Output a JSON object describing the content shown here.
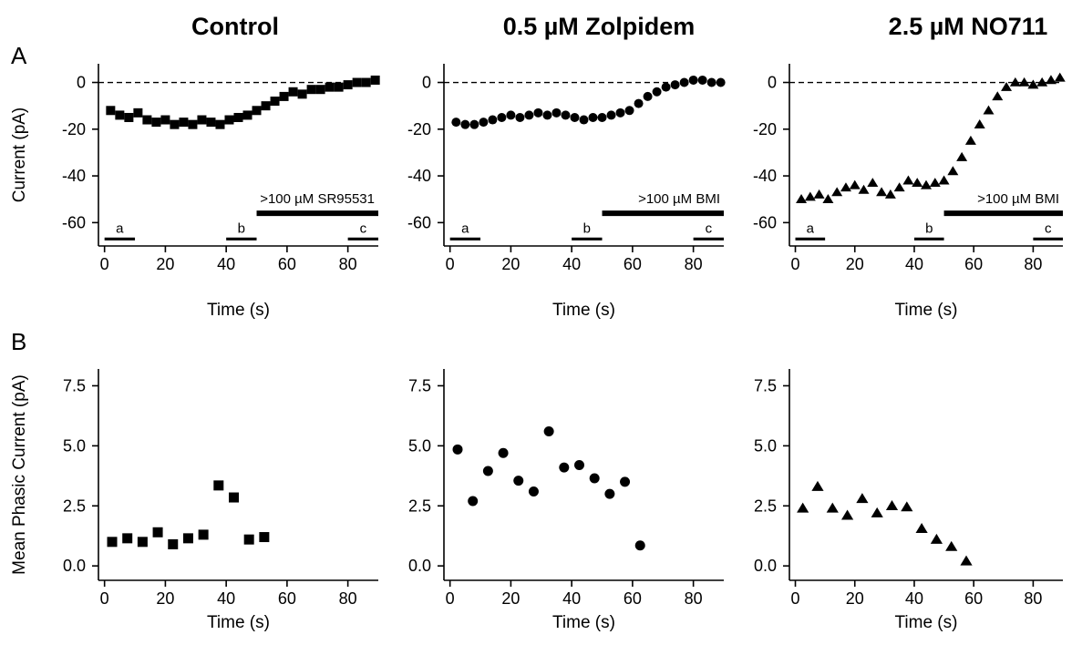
{
  "panels": {
    "A": "A",
    "B": "B"
  },
  "column_titles": [
    "Control",
    "0.5 µM Zolpidem",
    "2.5 µM NO711"
  ],
  "chart_data": [
    {
      "type": "scatter",
      "title": "Control",
      "panel": "A",
      "xlabel": "Time (s)",
      "ylabel": "Current (pA)",
      "xlim": [
        -2,
        90
      ],
      "ylim": [
        -70,
        8
      ],
      "xticks": [
        0,
        20,
        40,
        60,
        80
      ],
      "yticks": [
        0,
        -20,
        -40,
        -60
      ],
      "baseline": 0,
      "marker": "square",
      "series": [
        {
          "x": [
            2,
            5,
            8,
            11,
            14,
            17,
            20,
            23,
            26,
            29,
            32,
            35,
            38,
            41,
            44,
            47,
            50,
            53,
            56,
            59,
            62,
            65,
            68,
            71,
            74,
            77,
            80,
            83,
            86,
            89
          ],
          "y": [
            -12,
            -14,
            -15,
            -13,
            -16,
            -17,
            -16,
            -18,
            -17,
            -18,
            -16,
            -17,
            -18,
            -16,
            -15,
            -14,
            -12,
            -10,
            -8,
            -6,
            -4,
            -5,
            -3,
            -3,
            -2,
            -2,
            -1,
            0,
            0,
            1
          ]
        }
      ],
      "bars": [
        {
          "label": "a",
          "x": [
            0,
            10
          ],
          "level": -67
        },
        {
          "label": "b",
          "x": [
            40,
            50
          ],
          "level": -67
        },
        {
          "label": "c",
          "x": [
            80,
            90
          ],
          "level": -67
        },
        {
          "label": ">100 µM SR95531",
          "x": [
            50,
            90
          ],
          "level": -56
        }
      ]
    },
    {
      "type": "scatter",
      "title": "0.5 µM Zolpidem",
      "panel": "A",
      "xlabel": "Time (s)",
      "ylabel": "",
      "xlim": [
        -2,
        90
      ],
      "ylim": [
        -70,
        8
      ],
      "xticks": [
        0,
        20,
        40,
        60,
        80
      ],
      "yticks": [
        0,
        -20,
        -40,
        -60
      ],
      "baseline": 0,
      "marker": "circle",
      "series": [
        {
          "x": [
            2,
            5,
            8,
            11,
            14,
            17,
            20,
            23,
            26,
            29,
            32,
            35,
            38,
            41,
            44,
            47,
            50,
            53,
            56,
            59,
            62,
            65,
            68,
            71,
            74,
            77,
            80,
            83,
            86,
            89
          ],
          "y": [
            -17,
            -18,
            -18,
            -17,
            -16,
            -15,
            -14,
            -15,
            -14,
            -13,
            -14,
            -13,
            -14,
            -15,
            -16,
            -15,
            -15,
            -14,
            -13,
            -12,
            -9,
            -6,
            -4,
            -2,
            -1,
            0,
            1,
            1,
            0,
            0
          ]
        }
      ],
      "bars": [
        {
          "label": "a",
          "x": [
            0,
            10
          ],
          "level": -67
        },
        {
          "label": "b",
          "x": [
            40,
            50
          ],
          "level": -67
        },
        {
          "label": "c",
          "x": [
            80,
            90
          ],
          "level": -67
        },
        {
          "label": ">100 µM BMI",
          "x": [
            50,
            90
          ],
          "level": -56
        }
      ]
    },
    {
      "type": "scatter",
      "title": "2.5 µM NO711",
      "panel": "A",
      "xlabel": "Time (s)",
      "ylabel": "",
      "xlim": [
        -2,
        90
      ],
      "ylim": [
        -70,
        8
      ],
      "xticks": [
        0,
        20,
        40,
        60,
        80
      ],
      "yticks": [
        0,
        -20,
        -40,
        -60
      ],
      "baseline": 0,
      "marker": "triangle",
      "series": [
        {
          "x": [
            2,
            5,
            8,
            11,
            14,
            17,
            20,
            23,
            26,
            29,
            32,
            35,
            38,
            41,
            44,
            47,
            50,
            53,
            56,
            59,
            62,
            65,
            68,
            71,
            74,
            77,
            80,
            83,
            86,
            89
          ],
          "y": [
            -50,
            -49,
            -48,
            -50,
            -47,
            -45,
            -44,
            -46,
            -43,
            -47,
            -48,
            -45,
            -42,
            -43,
            -44,
            -43,
            -42,
            -38,
            -32,
            -25,
            -18,
            -12,
            -6,
            -2,
            0,
            0,
            -1,
            0,
            1,
            2
          ]
        }
      ],
      "bars": [
        {
          "label": "a",
          "x": [
            0,
            10
          ],
          "level": -67
        },
        {
          "label": "b",
          "x": [
            40,
            50
          ],
          "level": -67
        },
        {
          "label": "c",
          "x": [
            80,
            90
          ],
          "level": -67
        },
        {
          "label": ">100 µM BMI",
          "x": [
            50,
            90
          ],
          "level": -56
        }
      ]
    },
    {
      "type": "scatter",
      "title": "",
      "panel": "B",
      "xlabel": "Time (s)",
      "ylabel": "Mean Phasic Current (pA)",
      "xlim": [
        -2,
        90
      ],
      "ylim": [
        -0.6,
        8.2
      ],
      "xticks": [
        0,
        20,
        40,
        60,
        80
      ],
      "yticks": [
        "0.0",
        "2.5",
        "5.0",
        "7.5"
      ],
      "marker": "square",
      "series": [
        {
          "x": [
            2.5,
            7.5,
            12.5,
            17.5,
            22.5,
            27.5,
            32.5,
            37.5,
            42.5,
            47.5,
            52.5
          ],
          "y": [
            1.0,
            1.15,
            1.0,
            1.4,
            0.9,
            1.15,
            1.3,
            3.35,
            2.85,
            1.1,
            1.2
          ]
        }
      ]
    },
    {
      "type": "scatter",
      "title": "",
      "panel": "B",
      "xlabel": "Time (s)",
      "ylabel": "",
      "xlim": [
        -2,
        90
      ],
      "ylim": [
        -0.6,
        8.2
      ],
      "xticks": [
        0,
        20,
        40,
        60,
        80
      ],
      "yticks": [
        "0.0",
        "2.5",
        "5.0",
        "7.5"
      ],
      "marker": "circle",
      "series": [
        {
          "x": [
            2.5,
            7.5,
            12.5,
            17.5,
            22.5,
            27.5,
            32.5,
            37.5,
            42.5,
            47.5,
            52.5,
            57.5,
            62.5
          ],
          "y": [
            4.85,
            2.7,
            3.95,
            4.7,
            3.55,
            3.1,
            5.6,
            4.1,
            4.2,
            3.65,
            3.0,
            3.5,
            0.85
          ]
        }
      ]
    },
    {
      "type": "scatter",
      "title": "",
      "panel": "B",
      "xlabel": "Time (s)",
      "ylabel": "",
      "xlim": [
        -2,
        90
      ],
      "ylim": [
        -0.6,
        8.2
      ],
      "xticks": [
        0,
        20,
        40,
        60,
        80
      ],
      "yticks": [
        "0.0",
        "2.5",
        "5.0",
        "7.5"
      ],
      "marker": "triangle",
      "series": [
        {
          "x": [
            2.5,
            7.5,
            12.5,
            17.5,
            22.5,
            27.5,
            32.5,
            37.5,
            42.5,
            47.5,
            52.5,
            57.5
          ],
          "y": [
            2.4,
            3.3,
            2.4,
            2.1,
            2.8,
            2.2,
            2.5,
            2.45,
            1.55,
            1.1,
            0.8,
            0.2
          ]
        }
      ]
    }
  ]
}
